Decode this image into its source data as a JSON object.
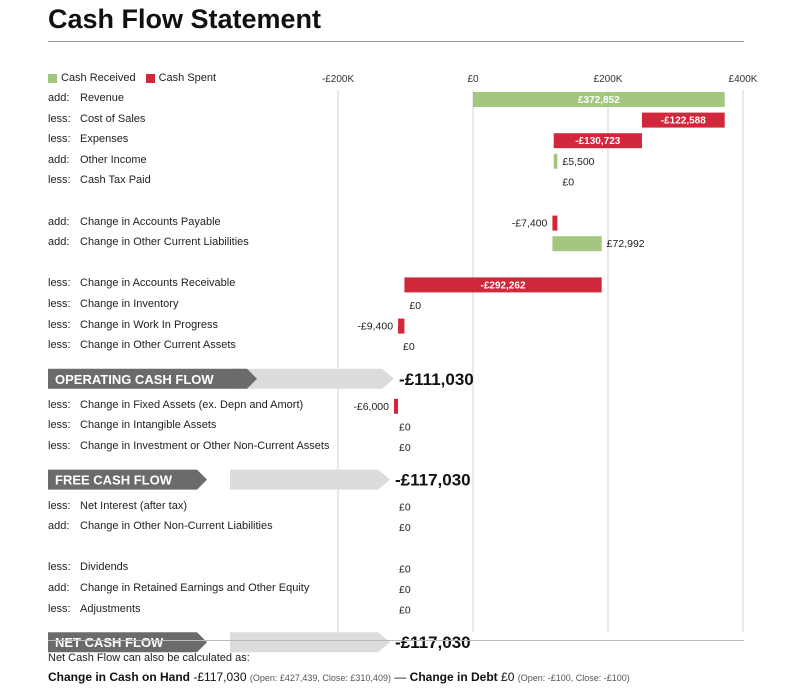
{
  "title": "Cash Flow Statement",
  "legend": [
    {
      "label": "Cash Received",
      "color": "#a3c77f"
    },
    {
      "label": "Cash Spent",
      "color": "#d0273a"
    }
  ],
  "chart_data": {
    "type": "bar",
    "subtype": "waterfall",
    "x_ticks": [
      "-£200K",
      "£0",
      "£200K",
      "£400K"
    ],
    "x_tick_values": [
      -200000,
      0,
      200000,
      400000
    ],
    "xlim": [
      -280000,
      400000
    ],
    "grid": true,
    "legend_position": "top-left",
    "rows": [
      {
        "prefix": "add:",
        "label": "Revenue",
        "value": 372852,
        "value_label": "£372,852",
        "group": 0
      },
      {
        "prefix": "less:",
        "label": "Cost of Sales",
        "value": -122588,
        "value_label": "-£122,588",
        "group": 0
      },
      {
        "prefix": "less:",
        "label": "Expenses",
        "value": -130723,
        "value_label": "-£130,723",
        "group": 0
      },
      {
        "prefix": "add:",
        "label": "Other Income",
        "value": 5500,
        "value_label": "£5,500",
        "group": 0
      },
      {
        "prefix": "less:",
        "label": "Cash Tax Paid",
        "value": 0,
        "value_label": "£0",
        "group": 0
      },
      {
        "prefix": "add:",
        "label": "Change in Accounts Payable",
        "value": -7400,
        "value_label": "-£7,400",
        "group": 1
      },
      {
        "prefix": "add:",
        "label": "Change in Other Current Liabilities",
        "value": 72992,
        "value_label": "£72,992",
        "group": 1
      },
      {
        "prefix": "less:",
        "label": "Change in Accounts Receivable",
        "value": -292262,
        "value_label": "-£292,262",
        "group": 2
      },
      {
        "prefix": "less:",
        "label": "Change in Inventory",
        "value": 0,
        "value_label": "£0",
        "group": 2
      },
      {
        "prefix": "less:",
        "label": "Change in Work In Progress",
        "value": -9400,
        "value_label": "-£9,400",
        "group": 2
      },
      {
        "prefix": "less:",
        "label": "Change in Other Current Assets",
        "value": 0,
        "value_label": "£0",
        "group": 2
      },
      {
        "type": "total",
        "label": "OPERATING CASH FLOW",
        "value": -111030,
        "value_label": "-£111,030"
      },
      {
        "prefix": "less:",
        "label": "Change in Fixed Assets (ex. Depn and Amort)",
        "value": -6000,
        "value_label": "-£6,000",
        "group": 3
      },
      {
        "prefix": "less:",
        "label": "Change in Intangible Assets",
        "value": 0,
        "value_label": "£0",
        "group": 3
      },
      {
        "prefix": "less:",
        "label": "Change in Investment or Other Non-Current Assets",
        "value": 0,
        "value_label": "£0",
        "group": 3
      },
      {
        "type": "total",
        "label": "FREE CASH FLOW",
        "value": -117030,
        "value_label": "-£117,030"
      },
      {
        "prefix": "less:",
        "label": "Net Interest (after tax)",
        "value": 0,
        "value_label": "£0",
        "group": 4
      },
      {
        "prefix": "add:",
        "label": "Change in Other Non-Current Liabilities",
        "value": 0,
        "value_label": "£0",
        "group": 4
      },
      {
        "prefix": "less:",
        "label": "Dividends",
        "value": 0,
        "value_label": "£0",
        "group": 5
      },
      {
        "prefix": "add:",
        "label": "Change in Retained Earnings and Other Equity",
        "value": 0,
        "value_label": "£0",
        "group": 5
      },
      {
        "prefix": "less:",
        "label": "Adjustments",
        "value": 0,
        "value_label": "£0",
        "group": 5
      },
      {
        "type": "total",
        "label": "NET CASH FLOW",
        "value": -117030,
        "value_label": "-£117,030"
      }
    ]
  },
  "footer": {
    "note": "Net Cash Flow can also be calculated as:",
    "cash_label": "Change in Cash on Hand",
    "cash_value": "-£117,030",
    "cash_detail": "(Open: £427,439, Close: £310,409)",
    "dash": "—",
    "debt_label": "Change in Debt",
    "debt_value": "£0",
    "debt_detail": "(Open: -£100, Close: -£100)"
  }
}
